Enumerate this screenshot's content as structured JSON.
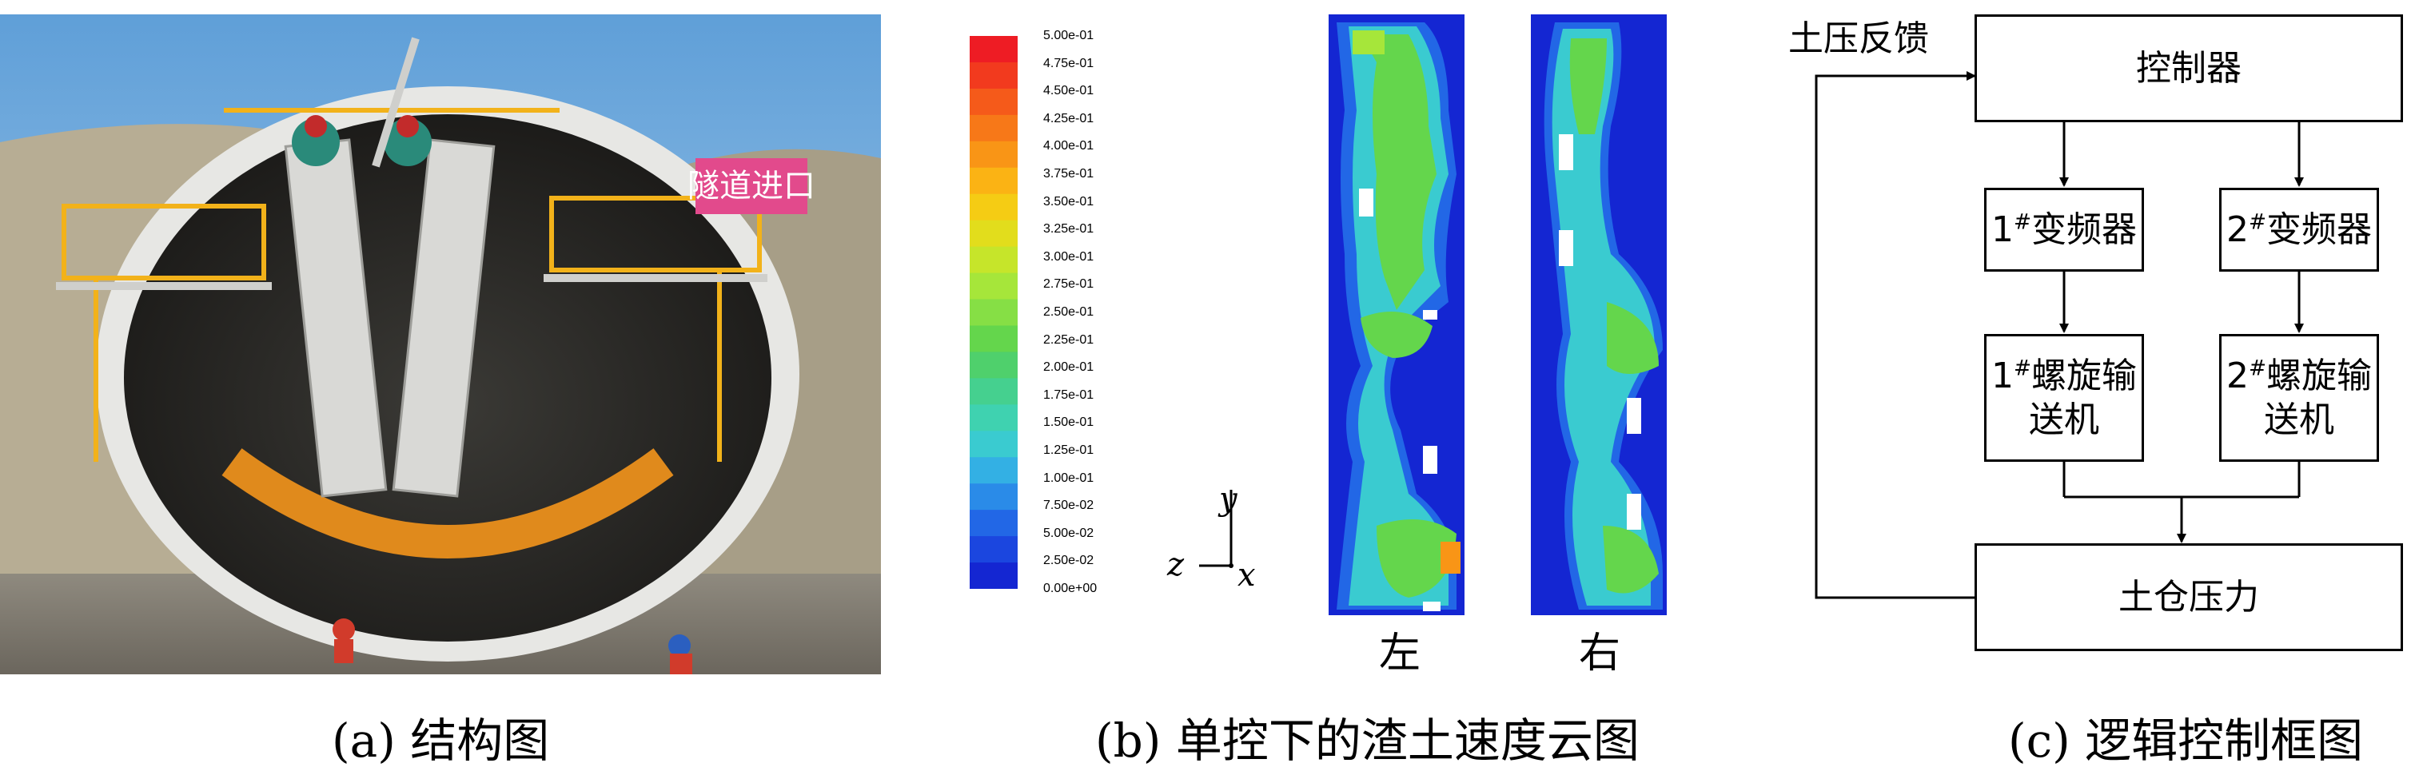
{
  "captions": {
    "a": "(a) 结构图",
    "b": "(b) 单控下的渣土速度云图",
    "c": "(c) 逻辑控制框图"
  },
  "photo": {
    "sign_text": "隧道进口"
  },
  "colorbar": {
    "labels": [
      "5.00e-01",
      "4.75e-01",
      "4.50e-01",
      "4.25e-01",
      "4.00e-01",
      "3.75e-01",
      "3.50e-01",
      "3.25e-01",
      "3.00e-01",
      "2.75e-01",
      "2.50e-01",
      "2.25e-01",
      "2.00e-01",
      "1.75e-01",
      "1.50e-01",
      "1.25e-01",
      "1.00e-01",
      "7.50e-02",
      "5.00e-02",
      "2.50e-02",
      "0.00e+00"
    ],
    "colors": [
      "#ee1c24",
      "#f23a1e",
      "#f55a1a",
      "#f77818",
      "#f99516",
      "#fbb314",
      "#f5cc14",
      "#e2dd1c",
      "#c6e52a",
      "#a6e63a",
      "#86df45",
      "#64d64c",
      "#4fd06c",
      "#45d08f",
      "#3fd2b0",
      "#3acbd0",
      "#33b0e4",
      "#2a8be8",
      "#2267e6",
      "#1b46df",
      "#1426d2"
    ]
  },
  "axis": {
    "y": "y",
    "z": "z",
    "x": "x"
  },
  "contour": {
    "left_label": "左",
    "right_label": "右"
  },
  "logic": {
    "feedback_label": "土压反馈",
    "controller": "控制器",
    "inverter1": "1#变频器",
    "inverter2": "2#变频器",
    "conveyor1_line1": "1#螺旋输",
    "conveyor1_line2": "送机",
    "conveyor2_line1": "2#螺旋输",
    "conveyor2_line2": "送机",
    "pressure": "土仓压力"
  }
}
